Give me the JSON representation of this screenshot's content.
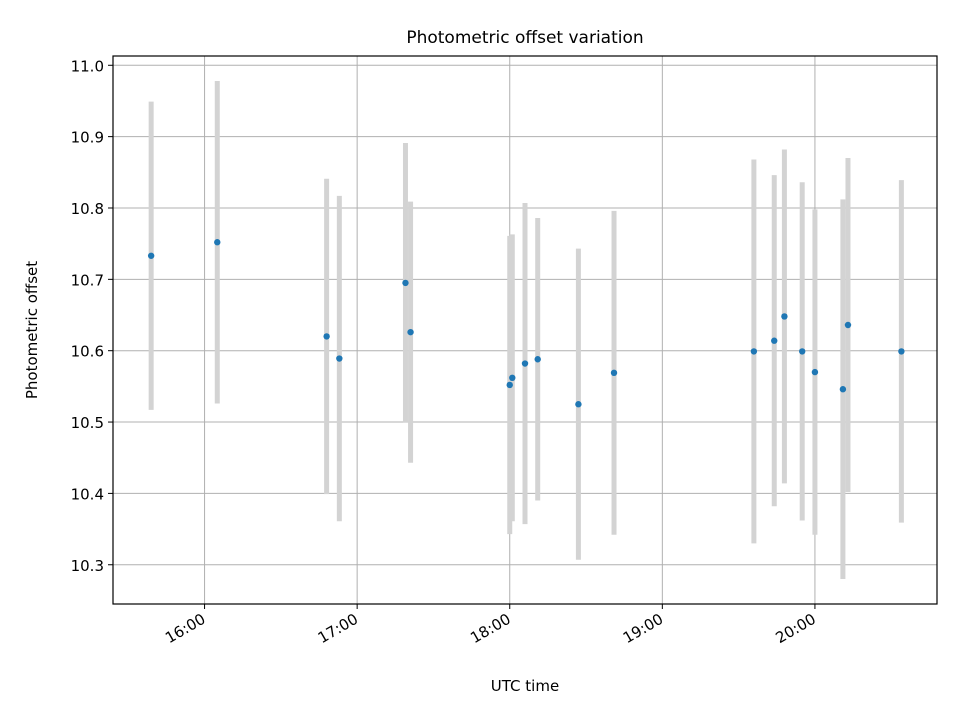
{
  "chart_data": {
    "type": "scatter",
    "title": "Photometric offset variation",
    "xlabel": "UTC time",
    "ylabel": "Photometric offset",
    "xlim": [
      "15:24",
      "20:48"
    ],
    "ylim": [
      10.245,
      11.013
    ],
    "x_ticks": [
      "16:00",
      "17:00",
      "18:00",
      "19:00",
      "20:00"
    ],
    "y_ticks": [
      "10.3",
      "10.4",
      "10.5",
      "10.6",
      "10.7",
      "10.8",
      "10.9",
      "11.0"
    ],
    "grid": true,
    "colors": {
      "point": "#1f77b4",
      "errorbar": "#d3d3d3",
      "grid": "#b0b0b0"
    },
    "series": [
      {
        "points": [
          {
            "x": "15:39",
            "y": 10.733,
            "yerr": 0.216
          },
          {
            "x": "16:05",
            "y": 10.752,
            "yerr": 0.226
          },
          {
            "x": "16:48",
            "y": 10.62,
            "yerr": 0.221
          },
          {
            "x": "16:53",
            "y": 10.589,
            "yerr": 0.228
          },
          {
            "x": "17:19",
            "y": 10.695,
            "yerr": 0.196
          },
          {
            "x": "17:21",
            "y": 10.626,
            "yerr": 0.183
          },
          {
            "x": "18:00",
            "y": 10.552,
            "yerr": 0.209
          },
          {
            "x": "18:01",
            "y": 10.562,
            "yerr": 0.201
          },
          {
            "x": "18:06",
            "y": 10.582,
            "yerr": 0.225
          },
          {
            "x": "18:11",
            "y": 10.588,
            "yerr": 0.198
          },
          {
            "x": "18:27",
            "y": 10.525,
            "yerr": 0.218
          },
          {
            "x": "18:41",
            "y": 10.569,
            "yerr": 0.227
          },
          {
            "x": "19:36",
            "y": 10.599,
            "yerr": 0.269
          },
          {
            "x": "19:44",
            "y": 10.614,
            "yerr": 0.232
          },
          {
            "x": "19:48",
            "y": 10.648,
            "yerr": 0.234
          },
          {
            "x": "19:55",
            "y": 10.599,
            "yerr": 0.237
          },
          {
            "x": "20:00",
            "y": 10.57,
            "yerr": 0.228
          },
          {
            "x": "20:11",
            "y": 10.546,
            "yerr": 0.266
          },
          {
            "x": "20:13",
            "y": 10.636,
            "yerr": 0.234
          },
          {
            "x": "20:34",
            "y": 10.599,
            "yerr": 0.24
          }
        ]
      }
    ]
  }
}
